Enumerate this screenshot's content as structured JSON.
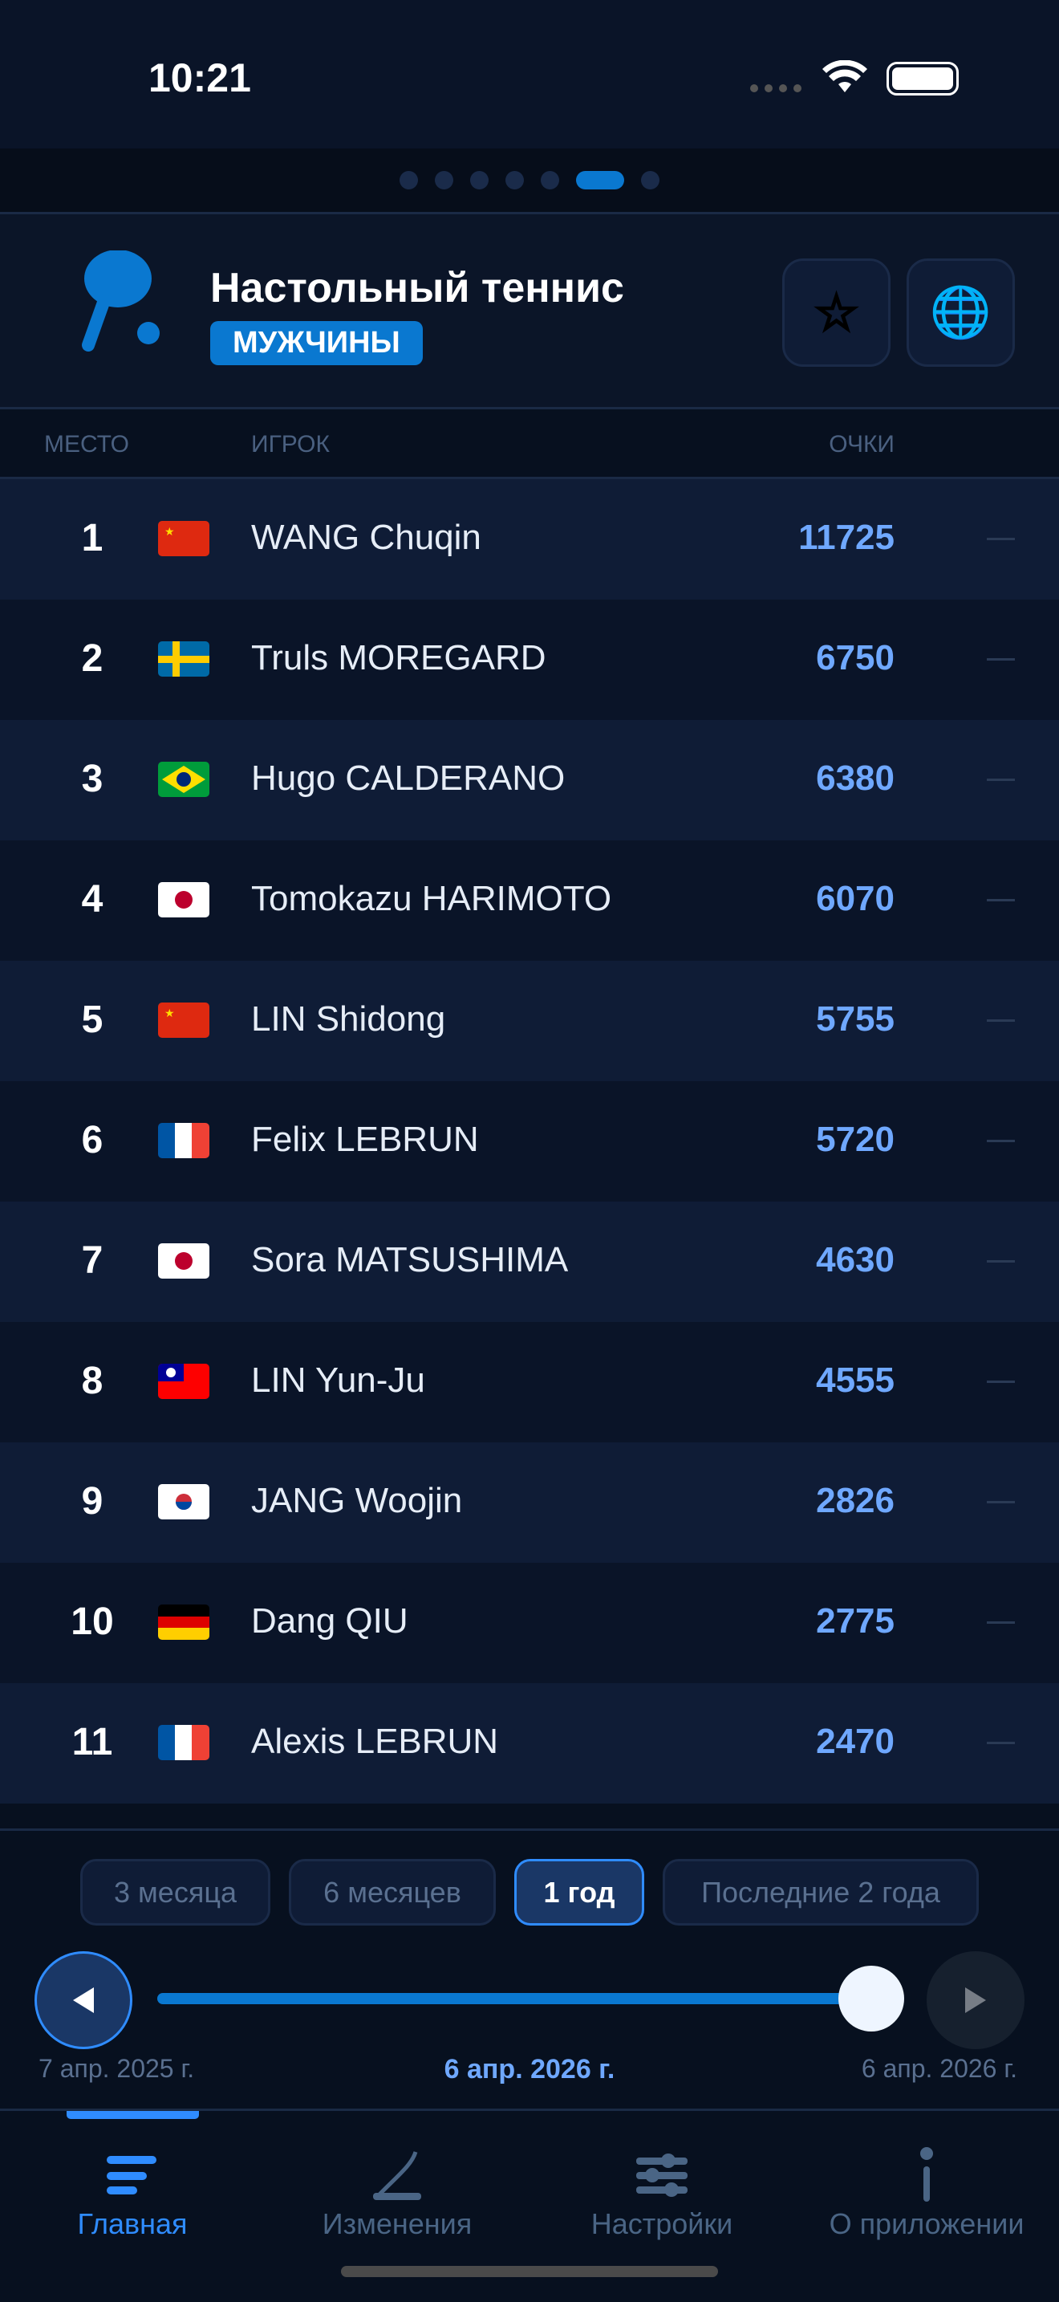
{
  "status": {
    "time": "10:21"
  },
  "pager": {
    "count": 7,
    "active": 5
  },
  "header": {
    "title": "Настольный теннис",
    "badge": "МУЖЧИНЫ",
    "icon": "ping-pong-paddle-icon"
  },
  "columns": {
    "place": "МЕСТО",
    "player": "ИГРОК",
    "points": "ОЧКИ"
  },
  "rows": [
    {
      "rank": "1",
      "flag": "CN",
      "name": "WANG Chuqin",
      "points": "11725",
      "change": "—"
    },
    {
      "rank": "2",
      "flag": "SE",
      "name": "Truls MOREGARD",
      "points": "6750",
      "change": "—"
    },
    {
      "rank": "3",
      "flag": "BR",
      "name": "Hugo CALDERANO",
      "points": "6380",
      "change": "—"
    },
    {
      "rank": "4",
      "flag": "JP",
      "name": "Tomokazu HARIMOTO",
      "points": "6070",
      "change": "—"
    },
    {
      "rank": "5",
      "flag": "CN",
      "name": "LIN Shidong",
      "points": "5755",
      "change": "—"
    },
    {
      "rank": "6",
      "flag": "FR",
      "name": "Felix LEBRUN",
      "points": "5720",
      "change": "—"
    },
    {
      "rank": "7",
      "flag": "JP",
      "name": "Sora MATSUSHIMA",
      "points": "4630",
      "change": "—"
    },
    {
      "rank": "8",
      "flag": "TW",
      "name": "LIN Yun-Ju",
      "points": "4555",
      "change": "—"
    },
    {
      "rank": "9",
      "flag": "KR",
      "name": "JANG Woojin",
      "points": "2826",
      "change": "—"
    },
    {
      "rank": "10",
      "flag": "DE",
      "name": "Dang QIU",
      "points": "2775",
      "change": "—"
    },
    {
      "rank": "11",
      "flag": "FR",
      "name": "Alexis LEBRUN",
      "points": "2470",
      "change": "—"
    }
  ],
  "periods": [
    {
      "label": "3 месяца"
    },
    {
      "label": "6 месяцев"
    },
    {
      "label": "1 год",
      "selected": true
    },
    {
      "label": "Последние 2 года"
    }
  ],
  "slider": {
    "start": "7 апр. 2025 г.",
    "current": "6 апр. 2026 г.",
    "end": "6 апр. 2026 г.",
    "value": 1.0
  },
  "tabs": [
    {
      "label": "Главная",
      "icon": "list-icon",
      "active": true
    },
    {
      "label": "Изменения",
      "icon": "chart-line-icon"
    },
    {
      "label": "Настройки",
      "icon": "sliders-icon"
    },
    {
      "label": "О приложении",
      "icon": "info-icon"
    }
  ],
  "colors": {
    "accent": "#0a78d0",
    "points": "#6fa8ff",
    "bg": "#07101f"
  }
}
